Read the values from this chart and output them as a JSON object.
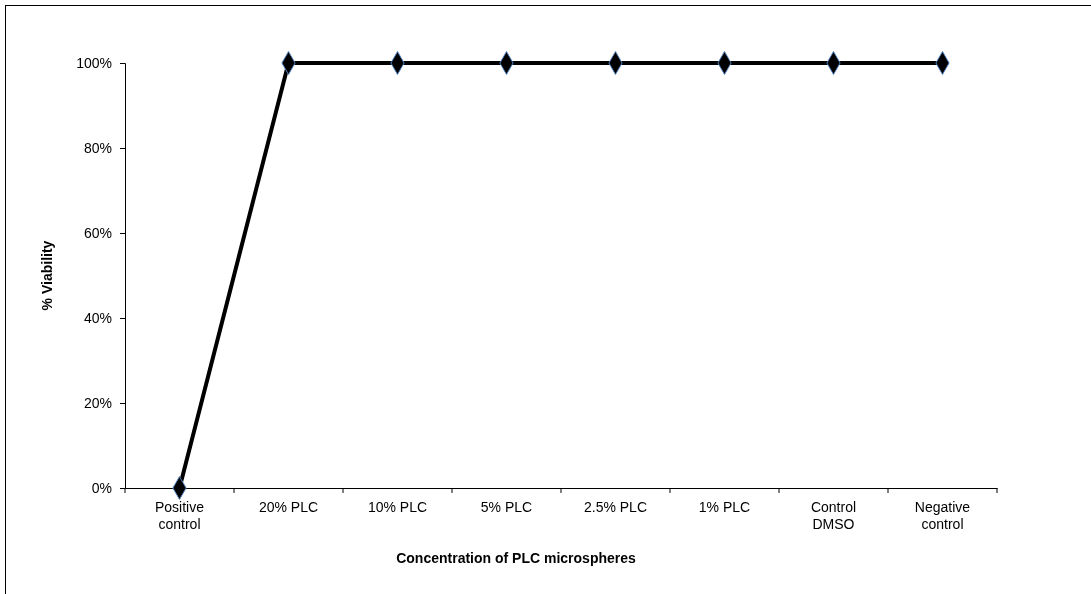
{
  "chart_data": {
    "type": "line",
    "xlabel": "Concentration of PLC microspheres",
    "ylabel": "% Viability",
    "categories": [
      "Positive control",
      "20% PLC",
      "10% PLC",
      "5% PLC",
      "2.5% PLC",
      "1% PLC",
      "Control DMSO",
      "Negative control"
    ],
    "series": [
      {
        "color": "#000000",
        "values": [
          0,
          100,
          100,
          100,
          100,
          100,
          100,
          100
        ]
      }
    ],
    "ylim": [
      0,
      100
    ],
    "yticks": [
      {
        "value": 0,
        "label": "0%"
      },
      {
        "value": 20,
        "label": "20%"
      },
      {
        "value": 40,
        "label": "40%"
      },
      {
        "value": 60,
        "label": "60%"
      },
      {
        "value": 80,
        "label": "80%"
      },
      {
        "value": 100,
        "label": "100%"
      }
    ],
    "grid": false,
    "marker": "diamond",
    "line_style": "solid"
  }
}
